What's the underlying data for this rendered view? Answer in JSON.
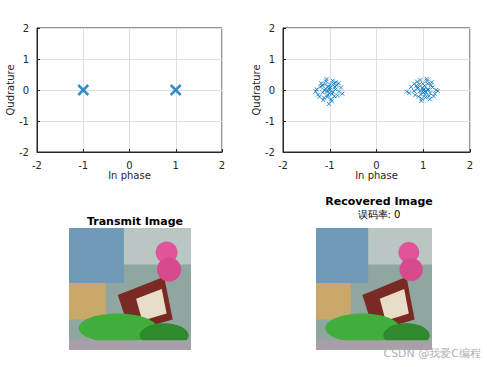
{
  "chart_data": [
    {
      "type": "scatter",
      "xlabel": "In phase",
      "ylabel": "Qudrature",
      "x": [
        -1,
        1
      ],
      "values": [
        0,
        0
      ],
      "color": "#0072bd",
      "marker": "x",
      "xlim": [
        -2,
        2
      ],
      "xticks": [
        -2,
        -1,
        0,
        1,
        2
      ],
      "ylim": [
        -2,
        2
      ],
      "yticks": [
        -2,
        -1,
        0,
        1,
        2
      ],
      "grid": true
    },
    {
      "type": "scatter",
      "xlabel": "In phase",
      "ylabel": "Qudrature",
      "x": [
        -1.02,
        -0.95,
        -1.1,
        -0.88,
        -1.15,
        -1.05,
        -0.92,
        -1.2,
        -0.8,
        -1.0,
        -1.08,
        -0.97,
        -1.25,
        -0.85,
        -1.12,
        -0.9,
        -1.03,
        -0.98,
        -1.18,
        -0.83,
        -1.28,
        -0.76,
        -1.06,
        -0.94,
        -1.14,
        -1.01,
        -0.87,
        -1.22,
        -0.99,
        -1.09,
        -0.93,
        -1.16,
        -0.81,
        -1.04,
        -1.3,
        -0.73,
        -1.07,
        -0.96,
        -1.11,
        -0.89,
        -1.02,
        1.02,
        0.95,
        1.1,
        0.88,
        1.15,
        1.05,
        0.92,
        1.2,
        0.8,
        1.0,
        1.08,
        0.97,
        1.25,
        0.85,
        1.12,
        0.9,
        1.03,
        0.98,
        1.18,
        0.83,
        1.28,
        0.74,
        1.06,
        0.94,
        1.14,
        1.01,
        0.87,
        1.22,
        0.99,
        1.09,
        0.93,
        1.16,
        0.81,
        1.04,
        1.31,
        0.7,
        1.07,
        0.96,
        1.11,
        0.89,
        0.65
      ],
      "values": [
        0.05,
        -0.12,
        0.18,
        0.02,
        -0.08,
        -0.22,
        0.21,
        0.1,
        -0.05,
        0.0,
        0.28,
        -0.3,
        -0.15,
        0.15,
        -0.25,
        -0.2,
        0.12,
        0.08,
        0.22,
        -0.18,
        0.02,
        0.08,
        -0.05,
        0.3,
        -0.32,
        -0.1,
        0.25,
        -0.22,
        0.18,
        0.04,
        -0.06,
        0.14,
        0.22,
        -0.17,
        -0.05,
        -0.12,
        0.35,
        -0.36,
        -0.01,
        0.1,
        -0.45,
        0.03,
        -0.14,
        0.2,
        0.05,
        -0.1,
        -0.24,
        0.18,
        0.08,
        -0.03,
        -0.01,
        0.3,
        -0.28,
        -0.12,
        0.13,
        -0.2,
        -0.22,
        0.14,
        0.06,
        0.25,
        -0.16,
        0.0,
        0.1,
        -0.07,
        0.32,
        -0.3,
        -0.08,
        0.27,
        -0.2,
        0.2,
        0.02,
        -0.04,
        0.16,
        0.2,
        -0.15,
        -0.03,
        -0.1,
        0.36,
        -0.35,
        0.01,
        0.08,
        -0.05
      ],
      "color": "#0072bd",
      "marker": "x",
      "xlim": [
        -2,
        2
      ],
      "xticks": [
        -2,
        -1,
        0,
        1,
        2
      ],
      "ylim": [
        -2,
        2
      ],
      "yticks": [
        -2,
        -1,
        0,
        1,
        2
      ],
      "grid": true
    },
    {
      "type": "image",
      "title": "Transmit Image"
    },
    {
      "type": "image",
      "title": "Recovered Image",
      "subtitle": "误码率: 0"
    }
  ],
  "watermark": "CSDN @我爱C编程"
}
